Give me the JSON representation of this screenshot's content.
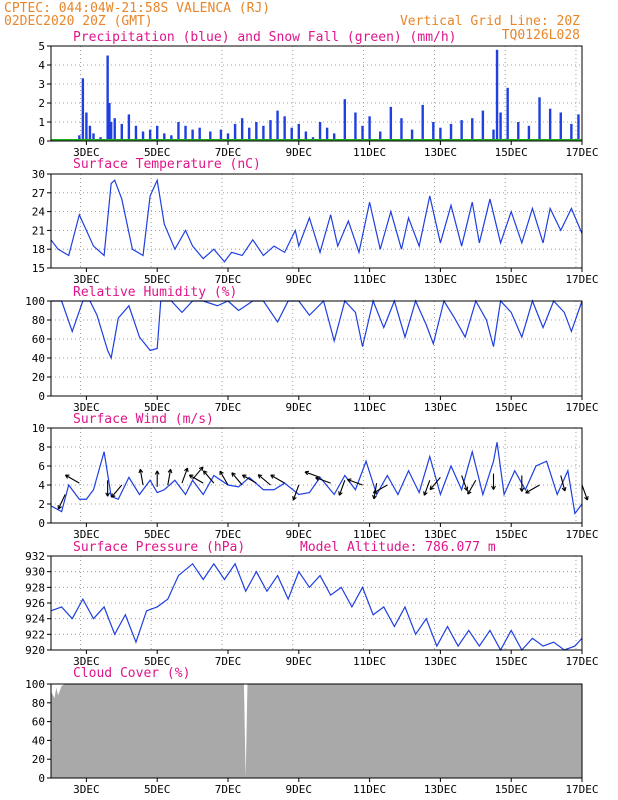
{
  "header": {
    "line1": "CPTEC:   044:04W-21:58S  VALENCA (RJ)",
    "line2": "02DEC2020 20Z (GMT)",
    "grid_note": "Vertical Grid Line: 20Z",
    "code": "TQ0126L028"
  },
  "colors": {
    "header": "#e8862a",
    "title": "#e0158a",
    "line": "#1f3fe0",
    "precip": "#1f3fe0",
    "snow": "#22aa22",
    "cloud": "#a9a9a9"
  },
  "x_ticks": [
    "3DEC",
    "5DEC",
    "7DEC",
    "9DEC",
    "11DEC",
    "13DEC",
    "15DEC",
    "17DEC"
  ],
  "chart_data": [
    {
      "type": "bar",
      "title": "Precipitation (blue) and Snow Fall (green) (mm/h)",
      "ylim": [
        0,
        5
      ],
      "yticks": [
        0,
        1,
        2,
        3,
        4,
        5
      ],
      "x_range_days": [
        2.0,
        17.0
      ],
      "x": [
        2.8,
        2.9,
        3.0,
        3.1,
        3.2,
        3.4,
        3.6,
        3.65,
        3.7,
        3.8,
        4.0,
        4.2,
        4.4,
        4.6,
        4.8,
        5.0,
        5.2,
        5.4,
        5.6,
        5.8,
        6.0,
        6.2,
        6.5,
        6.8,
        7.0,
        7.2,
        7.4,
        7.6,
        7.8,
        8.0,
        8.2,
        8.4,
        8.6,
        8.8,
        9.0,
        9.2,
        9.4,
        9.6,
        9.8,
        10.0,
        10.3,
        10.6,
        10.8,
        11.0,
        11.3,
        11.6,
        11.9,
        12.2,
        12.5,
        12.8,
        13.0,
        13.3,
        13.6,
        13.9,
        14.2,
        14.5,
        14.6,
        14.7,
        14.9,
        15.2,
        15.5,
        15.8,
        16.1,
        16.4,
        16.7,
        16.9
      ],
      "values": [
        0.3,
        3.3,
        1.5,
        0.8,
        0.4,
        0.2,
        4.5,
        2.0,
        1.0,
        1.2,
        0.9,
        1.4,
        0.8,
        0.5,
        0.6,
        0.8,
        0.4,
        0.3,
        1.0,
        0.8,
        0.6,
        0.7,
        0.5,
        0.6,
        0.4,
        0.9,
        1.2,
        0.7,
        1.0,
        0.8,
        1.1,
        1.6,
        1.3,
        0.7,
        0.9,
        0.5,
        0.2,
        1.0,
        0.7,
        0.4,
        2.2,
        1.5,
        0.8,
        1.3,
        0.5,
        1.8,
        1.2,
        0.6,
        1.9,
        1.0,
        0.7,
        0.9,
        1.1,
        1.2,
        1.6,
        0.6,
        4.8,
        1.5,
        2.8,
        1.0,
        0.8,
        2.3,
        1.7,
        1.5,
        0.9,
        1.4
      ],
      "snow_values": [
        0
      ],
      "ylabel": ""
    },
    {
      "type": "line",
      "title": "Surface Temperature (nC)",
      "ylim": [
        15,
        30
      ],
      "yticks": [
        15,
        18,
        21,
        24,
        27,
        30
      ],
      "x": [
        2.0,
        2.2,
        2.5,
        2.8,
        3.0,
        3.2,
        3.5,
        3.7,
        3.8,
        4.0,
        4.3,
        4.6,
        4.8,
        5.0,
        5.2,
        5.5,
        5.8,
        6.0,
        6.3,
        6.6,
        6.9,
        7.1,
        7.4,
        7.7,
        8.0,
        8.3,
        8.6,
        8.9,
        9.0,
        9.3,
        9.6,
        9.9,
        10.1,
        10.4,
        10.7,
        11.0,
        11.3,
        11.6,
        11.9,
        12.1,
        12.4,
        12.7,
        13.0,
        13.3,
        13.6,
        13.9,
        14.1,
        14.4,
        14.7,
        15.0,
        15.3,
        15.6,
        15.9,
        16.1,
        16.4,
        16.7,
        17.0
      ],
      "values": [
        19.5,
        18.0,
        17.0,
        23.5,
        21.0,
        18.5,
        17.0,
        28.5,
        29.0,
        26.0,
        18.0,
        17.0,
        26.5,
        29.0,
        22.0,
        18.0,
        21.0,
        18.5,
        16.5,
        18.0,
        16.0,
        17.5,
        17.0,
        19.5,
        17.0,
        18.5,
        17.5,
        21.0,
        18.5,
        23.0,
        17.5,
        23.5,
        18.5,
        22.5,
        17.5,
        25.5,
        18.0,
        24.0,
        18.0,
        23.0,
        18.5,
        26.5,
        19.0,
        25.0,
        18.5,
        25.5,
        19.0,
        26.0,
        19.0,
        24.0,
        19.0,
        24.5,
        19.0,
        24.5,
        21.0,
        24.5,
        20.5
      ],
      "ylabel": ""
    },
    {
      "type": "line",
      "title": "Relative Humidity (%)",
      "ylim": [
        0,
        100
      ],
      "yticks": [
        0,
        20,
        40,
        60,
        80,
        100
      ],
      "x": [
        2.0,
        2.3,
        2.6,
        2.9,
        3.1,
        3.3,
        3.6,
        3.7,
        3.9,
        4.2,
        4.5,
        4.8,
        5.0,
        5.1,
        5.4,
        5.7,
        6.0,
        6.3,
        6.7,
        7.0,
        7.3,
        7.7,
        8.0,
        8.4,
        8.7,
        9.0,
        9.3,
        9.7,
        10.0,
        10.3,
        10.6,
        10.8,
        11.1,
        11.4,
        11.7,
        12.0,
        12.3,
        12.6,
        12.8,
        13.1,
        13.4,
        13.7,
        14.0,
        14.3,
        14.5,
        14.7,
        15.0,
        15.3,
        15.6,
        15.9,
        16.2,
        16.5,
        16.7,
        17.0
      ],
      "values": [
        100,
        100,
        68,
        100,
        100,
        85,
        48,
        40,
        82,
        95,
        62,
        48,
        50,
        100,
        100,
        88,
        100,
        100,
        95,
        100,
        90,
        100,
        100,
        78,
        100,
        100,
        85,
        100,
        58,
        100,
        88,
        52,
        100,
        72,
        100,
        62,
        100,
        75,
        55,
        100,
        82,
        62,
        100,
        80,
        52,
        100,
        88,
        62,
        100,
        72,
        100,
        88,
        68,
        100
      ],
      "ylabel": ""
    },
    {
      "type": "line",
      "title": "Surface Wind (m/s)",
      "ylim": [
        0,
        10
      ],
      "yticks": [
        0,
        2,
        4,
        6,
        8,
        10
      ],
      "x": [
        2.0,
        2.3,
        2.5,
        2.8,
        3.0,
        3.2,
        3.5,
        3.7,
        3.9,
        4.2,
        4.5,
        4.8,
        5.0,
        5.2,
        5.5,
        5.8,
        6.0,
        6.3,
        6.6,
        7.0,
        7.3,
        7.6,
        8.0,
        8.3,
        8.6,
        9.0,
        9.3,
        9.6,
        10.0,
        10.3,
        10.6,
        10.9,
        11.2,
        11.5,
        11.8,
        12.1,
        12.4,
        12.7,
        13.0,
        13.3,
        13.6,
        13.9,
        14.2,
        14.5,
        14.6,
        14.8,
        15.1,
        15.4,
        15.7,
        16.0,
        16.3,
        16.6,
        16.8,
        17.0
      ],
      "values": [
        1.8,
        1.2,
        4.0,
        2.5,
        2.5,
        3.5,
        7.5,
        2.8,
        2.5,
        4.8,
        3.0,
        4.5,
        3.2,
        3.5,
        4.5,
        3.0,
        4.5,
        3.0,
        5.0,
        4.0,
        3.8,
        4.8,
        3.5,
        3.5,
        4.2,
        3.0,
        3.2,
        4.8,
        3.0,
        5.0,
        3.5,
        6.5,
        3.0,
        5.0,
        3.0,
        5.5,
        3.2,
        7.0,
        3.0,
        6.0,
        3.5,
        7.5,
        3.0,
        6.5,
        8.5,
        3.0,
        5.5,
        3.5,
        6.0,
        6.5,
        3.0,
        5.5,
        1.0,
        2.0
      ],
      "arrows": [
        {
          "x": 2.4,
          "speed": 3.0,
          "dir_deg": 205
        },
        {
          "x": 2.8,
          "speed": 4.2,
          "dir_deg": 300
        },
        {
          "x": 3.6,
          "speed": 4.5,
          "dir_deg": 180
        },
        {
          "x": 4.0,
          "speed": 4.0,
          "dir_deg": 220
        },
        {
          "x": 4.6,
          "speed": 4.0,
          "dir_deg": 350
        },
        {
          "x": 5.0,
          "speed": 3.8,
          "dir_deg": 0
        },
        {
          "x": 5.3,
          "speed": 4.0,
          "dir_deg": 10
        },
        {
          "x": 5.7,
          "speed": 4.2,
          "dir_deg": 20
        },
        {
          "x": 6.0,
          "speed": 4.6,
          "dir_deg": 40
        },
        {
          "x": 6.3,
          "speed": 4.2,
          "dir_deg": 300
        },
        {
          "x": 6.6,
          "speed": 4.2,
          "dir_deg": 320
        },
        {
          "x": 7.0,
          "speed": 4.0,
          "dir_deg": 330
        },
        {
          "x": 7.4,
          "speed": 4.0,
          "dir_deg": 320
        },
        {
          "x": 7.8,
          "speed": 4.2,
          "dir_deg": 300
        },
        {
          "x": 8.2,
          "speed": 4.0,
          "dir_deg": 310
        },
        {
          "x": 8.6,
          "speed": 4.2,
          "dir_deg": 300
        },
        {
          "x": 9.0,
          "speed": 4.0,
          "dir_deg": 200
        },
        {
          "x": 9.6,
          "speed": 4.8,
          "dir_deg": 290
        },
        {
          "x": 9.9,
          "speed": 4.2,
          "dir_deg": 290
        },
        {
          "x": 10.3,
          "speed": 4.5,
          "dir_deg": 200
        },
        {
          "x": 10.8,
          "speed": 4.0,
          "dir_deg": 290
        },
        {
          "x": 11.2,
          "speed": 4.2,
          "dir_deg": 190
        },
        {
          "x": 11.5,
          "speed": 4.0,
          "dir_deg": 240
        },
        {
          "x": 12.7,
          "speed": 4.5,
          "dir_deg": 200
        },
        {
          "x": 13.0,
          "speed": 4.8,
          "dir_deg": 220
        },
        {
          "x": 13.6,
          "speed": 5.0,
          "dir_deg": 160
        },
        {
          "x": 14.0,
          "speed": 4.5,
          "dir_deg": 210
        },
        {
          "x": 14.5,
          "speed": 5.2,
          "dir_deg": 180
        },
        {
          "x": 15.3,
          "speed": 5.0,
          "dir_deg": 180
        },
        {
          "x": 15.8,
          "speed": 4.0,
          "dir_deg": 240
        },
        {
          "x": 16.4,
          "speed": 5.0,
          "dir_deg": 165
        },
        {
          "x": 17.0,
          "speed": 4.0,
          "dir_deg": 160
        }
      ],
      "ylabel": ""
    },
    {
      "type": "line",
      "title": "Surface Pressure (hPa)",
      "annotation": "Model Altitude: 786.077 m",
      "ylim": [
        920,
        932
      ],
      "yticks": [
        920,
        922,
        924,
        926,
        928,
        930,
        932
      ],
      "x": [
        2.0,
        2.3,
        2.6,
        2.9,
        3.2,
        3.5,
        3.8,
        4.1,
        4.4,
        4.7,
        5.0,
        5.3,
        5.6,
        6.0,
        6.3,
        6.6,
        6.9,
        7.2,
        7.5,
        7.8,
        8.1,
        8.4,
        8.7,
        9.0,
        9.3,
        9.6,
        9.9,
        10.2,
        10.5,
        10.8,
        11.1,
        11.4,
        11.7,
        12.0,
        12.3,
        12.6,
        12.9,
        13.2,
        13.5,
        13.8,
        14.1,
        14.4,
        14.7,
        15.0,
        15.3,
        15.6,
        15.9,
        16.2,
        16.5,
        16.8,
        17.0
      ],
      "values": [
        925.0,
        925.5,
        924.0,
        926.5,
        924.0,
        925.5,
        922.0,
        924.5,
        921.0,
        925.0,
        925.5,
        926.5,
        929.5,
        931.0,
        929.0,
        931.0,
        929.0,
        931.0,
        927.5,
        930.0,
        927.5,
        929.5,
        926.5,
        930.0,
        928.0,
        929.5,
        927.0,
        928.0,
        925.5,
        928.0,
        924.5,
        925.5,
        923.0,
        925.5,
        922.0,
        924.0,
        920.5,
        923.0,
        920.5,
        922.5,
        920.5,
        922.5,
        920.0,
        922.5,
        920.0,
        921.5,
        920.5,
        921.0,
        920.0,
        920.5,
        921.5
      ],
      "ylabel": ""
    },
    {
      "type": "area",
      "title": "Cloud Cover (%)",
      "ylim": [
        0,
        100
      ],
      "yticks": [
        0,
        20,
        40,
        60,
        80,
        100
      ],
      "x": [
        2.0,
        2.1,
        2.15,
        2.2,
        2.3,
        2.4,
        2.5,
        7.45,
        7.5,
        7.55,
        17.0
      ],
      "values": [
        92,
        85,
        96,
        88,
        98,
        100,
        100,
        100,
        0,
        100,
        100
      ],
      "ylabel": ""
    }
  ]
}
